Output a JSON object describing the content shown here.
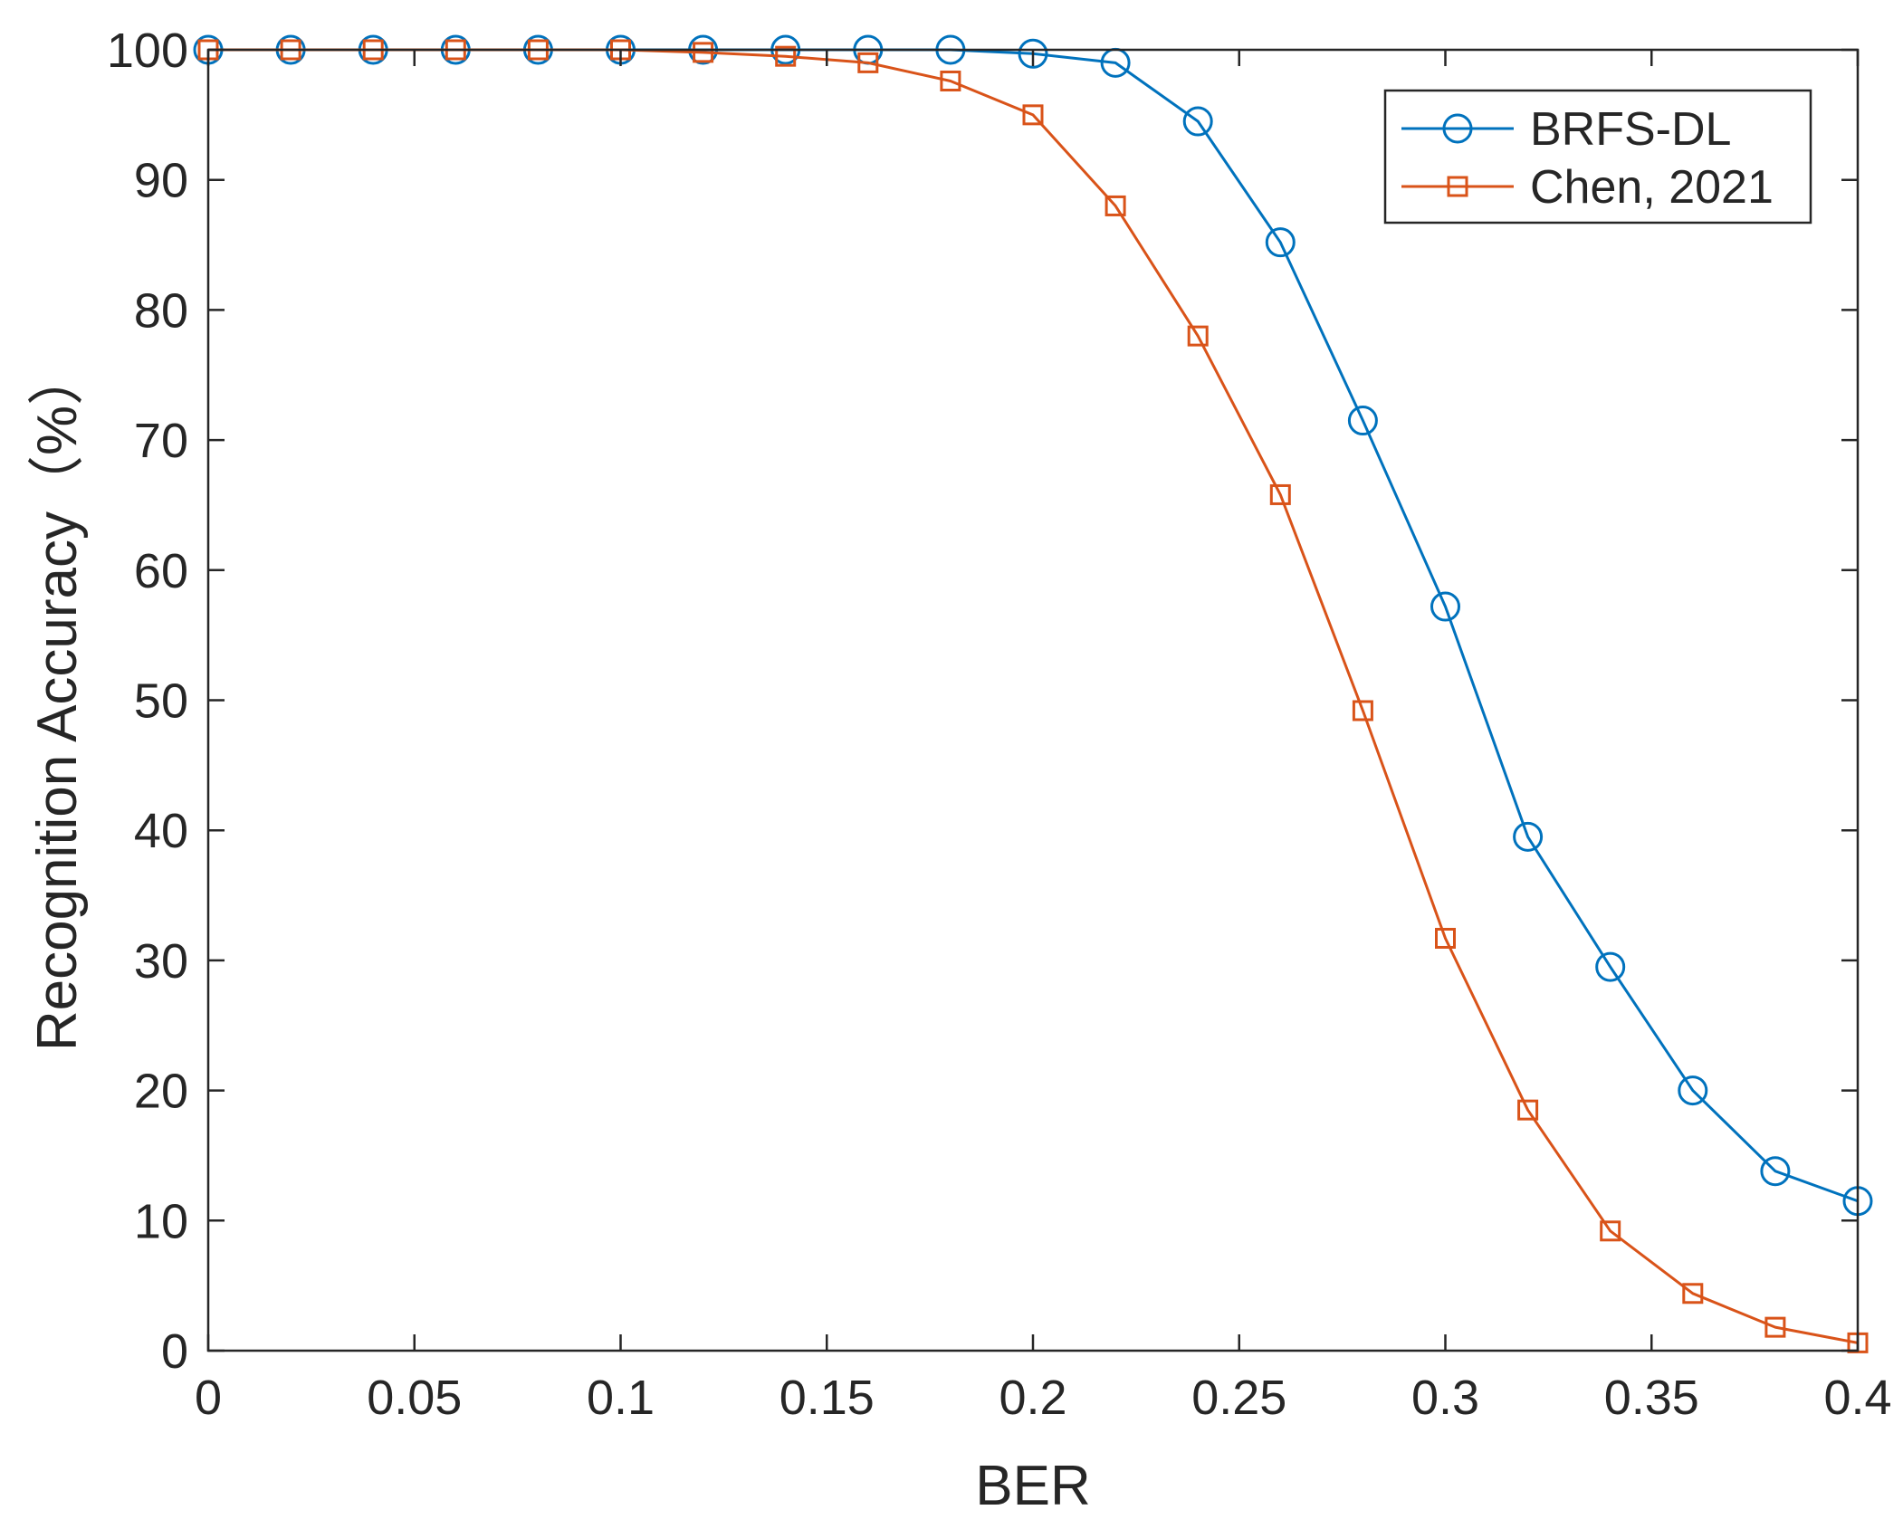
{
  "chart_data": {
    "type": "line",
    "title": "",
    "xlabel": "BER",
    "ylabel": "Recognition Accuracy（%）",
    "xlim": [
      0,
      0.4
    ],
    "ylim": [
      0,
      100
    ],
    "xticks": [
      0,
      0.05,
      0.1,
      0.15,
      0.2,
      0.25,
      0.3,
      0.35,
      0.4
    ],
    "xtick_labels": [
      "0",
      "0.05",
      "0.1",
      "0.15",
      "0.2",
      "0.25",
      "0.3",
      "0.35",
      "0.4"
    ],
    "yticks": [
      0,
      10,
      20,
      30,
      40,
      50,
      60,
      70,
      80,
      90,
      100
    ],
    "ytick_labels": [
      "0",
      "10",
      "20",
      "30",
      "40",
      "50",
      "60",
      "70",
      "80",
      "90",
      "100"
    ],
    "grid": false,
    "legend_position": "top-right",
    "x": [
      0,
      0.02,
      0.04,
      0.06,
      0.08,
      0.1,
      0.12,
      0.14,
      0.16,
      0.18,
      0.2,
      0.22,
      0.24,
      0.26,
      0.28,
      0.3,
      0.32,
      0.34,
      0.36,
      0.38,
      0.4
    ],
    "series": [
      {
        "name": "BRFS-DL",
        "color": "#0072BD",
        "marker": "circle",
        "values": [
          100,
          100,
          100,
          100,
          100,
          100,
          100,
          100,
          100,
          100,
          99.7,
          99,
          94.5,
          85.2,
          71.5,
          57.2,
          39.5,
          29.5,
          20,
          13.8,
          11.5
        ]
      },
      {
        "name": "Chen, 2021",
        "color": "#D95319",
        "marker": "square",
        "values": [
          100,
          100,
          100,
          100,
          100,
          100,
          99.8,
          99.5,
          99,
          97.6,
          95,
          88,
          78,
          65.8,
          49.2,
          31.7,
          18.5,
          9.2,
          4.4,
          1.8,
          0.6
        ]
      }
    ]
  }
}
